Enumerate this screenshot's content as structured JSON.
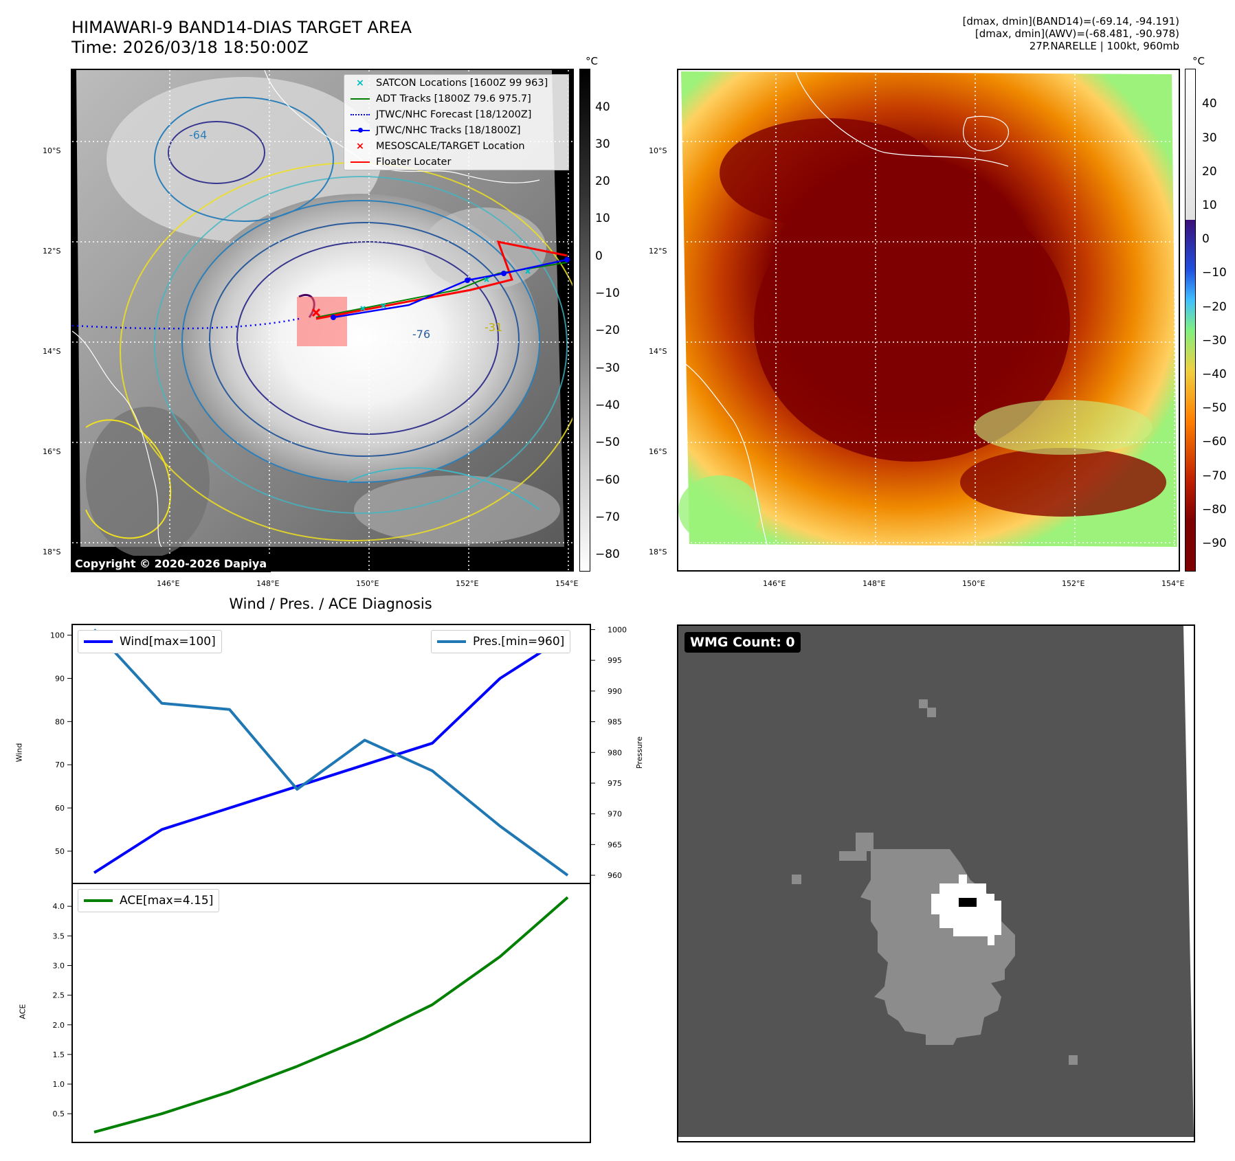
{
  "header": {
    "title_line1": "HIMAWARI-9 BAND14-DIAS TARGET AREA",
    "title_line2": "Time: 2026/03/18 18:50:00Z",
    "info_line1": "[dmax, dmin](BAND14)=(-69.14, -94.191)",
    "info_line2": "[dmax, dmin](AWV)=(-68.481, -90.978)",
    "info_line3": "27P.NARELLE | 100kt, 960mb"
  },
  "map_panel": {
    "lat_labels": [
      "10°S",
      "12°S",
      "14°S",
      "16°S",
      "18°S"
    ],
    "lon_labels": [
      "146°E",
      "148°E",
      "150°E",
      "152°E",
      "154°E"
    ],
    "unit": "°C",
    "colorbar_ticks": [
      "40",
      "30",
      "20",
      "10",
      "0",
      "−10",
      "−20",
      "−30",
      "−40",
      "−50",
      "−60",
      "−70",
      "−80"
    ],
    "contour_labels": [
      "-64",
      "-76",
      "-31"
    ],
    "copyright": "Copyright © 2020-2026 Dapiya",
    "legend": [
      {
        "label": "SATCON Locations [1600Z 99 963]",
        "color": "#00bfbf",
        "symbol": "x-cyan"
      },
      {
        "label": "ADT Tracks [1800Z 79.6 975.7]",
        "color": "#008000",
        "symbol": "line"
      },
      {
        "label": "JTWC/NHC Forecast [18/1200Z]",
        "color": "#0000ff",
        "symbol": "dotted"
      },
      {
        "label": "JTWC/NHC Tracks [18/1800Z]",
        "color": "#0000ff",
        "symbol": "line-dot"
      },
      {
        "label": "MESOSCALE/TARGET Location",
        "color": "#ff0000",
        "symbol": "x-red"
      },
      {
        "label": "Floater Locater",
        "color": "#ff0000",
        "symbol": "line"
      }
    ]
  },
  "awv_panel": {
    "lat_labels": [
      "10°S",
      "12°S",
      "14°S",
      "16°S",
      "18°S"
    ],
    "lon_labels": [
      "146°E",
      "148°E",
      "150°E",
      "152°E",
      "154°E"
    ],
    "unit": "°C",
    "colorbar_ticks": [
      "40",
      "30",
      "20",
      "10",
      "0",
      "−10",
      "−20",
      "−30",
      "−40",
      "−50",
      "−60",
      "−70",
      "−80",
      "−90"
    ]
  },
  "diagnosis_title": "Wind / Pres. / ACE Diagnosis",
  "wmg_label": "WMG Count: 0",
  "chart_data": [
    {
      "type": "line",
      "x": [
        0,
        1,
        2,
        3,
        4,
        5,
        6,
        7
      ],
      "series": [
        {
          "name": "Wind[max=100]",
          "values": [
            45,
            55,
            60,
            65,
            70,
            75,
            90,
            100
          ],
          "color": "#0000ff",
          "axis": "left"
        },
        {
          "name": "Pres.[min=960]",
          "values": [
            1000,
            988,
            987,
            974,
            982,
            977,
            968,
            960
          ],
          "color": "#1f77b4",
          "axis": "right"
        }
      ],
      "ylabel": "Wind",
      "y2label": "Pressure",
      "ylim": [
        43,
        102
      ],
      "y2lim": [
        959,
        1000.5
      ],
      "yticks": [
        50,
        60,
        70,
        80,
        90,
        100
      ],
      "y2ticks": [
        960,
        965,
        970,
        975,
        980,
        985,
        990,
        995,
        1000
      ]
    },
    {
      "type": "line",
      "x": [
        0,
        1,
        2,
        3,
        4,
        5,
        6,
        7
      ],
      "series": [
        {
          "name": "ACE[max=4.15]",
          "values": [
            0.19,
            0.5,
            0.87,
            1.3,
            1.78,
            2.34,
            3.15,
            4.15
          ],
          "color": "#008000"
        }
      ],
      "ylabel": "ACE",
      "ylim": [
        0.05,
        4.35
      ],
      "yticks": [
        0.5,
        1.0,
        1.5,
        2.0,
        2.5,
        3.0,
        3.5,
        4.0
      ],
      "ytick_labels": [
        "0.5",
        "1.0",
        "1.5",
        "2.0",
        "2.5",
        "3.0",
        "3.5",
        "4.0"
      ]
    }
  ]
}
